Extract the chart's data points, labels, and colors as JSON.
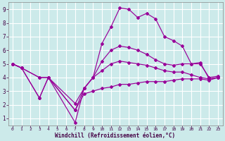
{
  "xlabel": "Windchill (Refroidissement éolien,°C)",
  "bg_color": "#cceaea",
  "grid_color": "#aacccc",
  "line_color": "#990099",
  "x_ticks": [
    0,
    1,
    2,
    3,
    4,
    5,
    6,
    7,
    8,
    9,
    10,
    11,
    12,
    13,
    14,
    15,
    16,
    17,
    18,
    19,
    20,
    21,
    22,
    23
  ],
  "x_tick_labels": [
    "0",
    "1",
    "2",
    "3",
    "4",
    "5",
    "6",
    "7",
    "8",
    "9",
    "10",
    "11",
    "12",
    "13",
    "14",
    "15",
    "16",
    "17",
    "18",
    "19",
    "20",
    "21",
    "22",
    "23"
  ],
  "y_ticks": [
    1,
    2,
    3,
    4,
    5,
    6,
    7,
    8,
    9
  ],
  "xlim": [
    -0.5,
    23.5
  ],
  "ylim": [
    0.5,
    9.5
  ],
  "line1_x": [
    0,
    1,
    3,
    4,
    7,
    8,
    9,
    10,
    11,
    12,
    13,
    14,
    15,
    16,
    17,
    18,
    19,
    20,
    21,
    22,
    23
  ],
  "line1_y": [
    5.0,
    4.7,
    4.0,
    4.0,
    0.7,
    3.2,
    4.0,
    6.5,
    7.7,
    9.1,
    9.0,
    8.4,
    8.7,
    8.3,
    7.0,
    6.7,
    6.3,
    5.0,
    5.1,
    3.9,
    4.0
  ],
  "line2_x": [
    0,
    1,
    3,
    4,
    7,
    8,
    9,
    10,
    11,
    12,
    13,
    14,
    15,
    16,
    17,
    18,
    19,
    20,
    21,
    22,
    23
  ],
  "line2_y": [
    5.0,
    4.7,
    4.0,
    4.0,
    2.1,
    3.2,
    4.0,
    5.2,
    6.0,
    6.3,
    6.2,
    6.0,
    5.7,
    5.3,
    5.0,
    4.9,
    5.0,
    5.0,
    5.0,
    4.0,
    4.1
  ],
  "line3_x": [
    0,
    1,
    3,
    4,
    7,
    8,
    9,
    10,
    11,
    12,
    13,
    14,
    15,
    16,
    17,
    18,
    19,
    20,
    21,
    22,
    23
  ],
  "line3_y": [
    5.0,
    4.7,
    2.5,
    4.0,
    1.6,
    3.2,
    4.0,
    4.5,
    5.0,
    5.2,
    5.1,
    5.0,
    4.9,
    4.7,
    4.5,
    4.4,
    4.4,
    4.2,
    4.0,
    3.9,
    4.0
  ],
  "line4_x": [
    0,
    1,
    3,
    4,
    7,
    8,
    9,
    10,
    11,
    12,
    13,
    14,
    15,
    16,
    17,
    18,
    19,
    20,
    21,
    22,
    23
  ],
  "line4_y": [
    5.0,
    4.7,
    2.5,
    4.0,
    1.6,
    2.8,
    3.0,
    3.2,
    3.3,
    3.5,
    3.5,
    3.6,
    3.7,
    3.7,
    3.7,
    3.8,
    3.9,
    3.9,
    3.9,
    3.8,
    4.0
  ]
}
